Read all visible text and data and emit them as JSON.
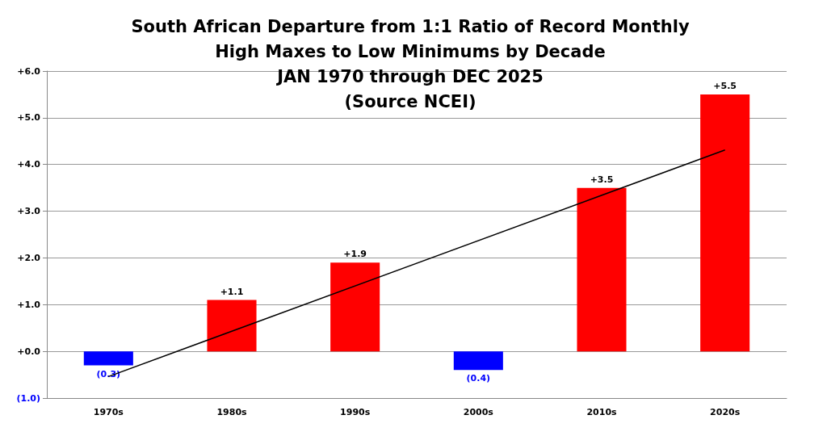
{
  "chart_data": {
    "type": "bar",
    "title": "South African Departure from 1:1 Ratio of Record Monthly\nHigh Maxes to Low Minimums by Decade\nJAN 1970 through DEC 2025\n(Source NCEI)",
    "categories": [
      "1970s",
      "1980s",
      "1990s",
      "2000s",
      "2010s",
      "2020s"
    ],
    "series": [
      {
        "values": [
          -0.3,
          1.1,
          1.9,
          -0.4,
          3.5,
          5.5
        ],
        "colors": [
          "#0000ff",
          "#ff0000",
          "#ff0000",
          "#0000ff",
          "#ff0000",
          "#ff0000"
        ],
        "value_labels": [
          "(0.3)",
          "+1.1",
          "+1.9",
          "(0.4)",
          "+3.5",
          "+5.5"
        ]
      },
      {
        "type": "line",
        "x": [
          "1970s",
          "2020s"
        ],
        "values": [
          -0.54,
          4.31
        ],
        "color": "#000000"
      }
    ],
    "ylim": [
      -1,
      6
    ],
    "yticks": [
      {
        "value": -1,
        "label": "(1.0)"
      },
      {
        "value": 0,
        "label": "+0.0"
      },
      {
        "value": 1,
        "label": "+1.0"
      },
      {
        "value": 2,
        "label": "+2.0"
      },
      {
        "value": 3,
        "label": "+3.0"
      },
      {
        "value": 4,
        "label": "+4.0"
      },
      {
        "value": 5,
        "label": "+5.0"
      },
      {
        "value": 6,
        "label": "+6.0"
      }
    ],
    "grid": "y"
  }
}
